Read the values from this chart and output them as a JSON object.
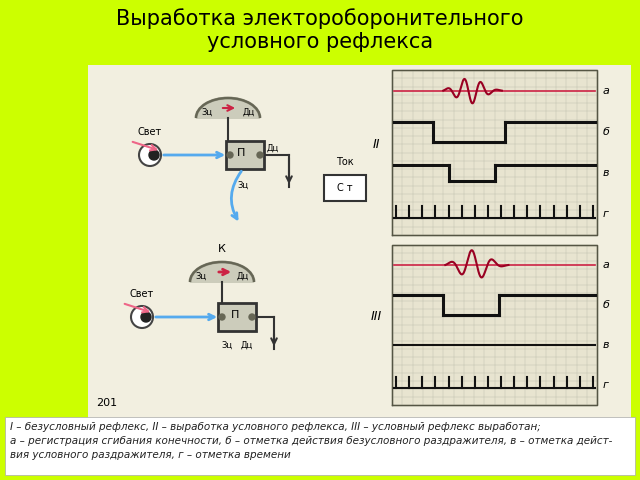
{
  "title": "Выработка электороборонительного\nусловного рефлекса",
  "title_fontsize": 15,
  "bg_color": "#ccff00",
  "main_bg": "#f2efe0",
  "footnote_line1": "I – безусловный рефлекс, II – выработка условного рефлекса, III – условный рефлекс выработан;",
  "footnote_line2": "а – регистрация сгибания конечности, б – отметка действия безусловного раздражителя, в – отметка дейст-",
  "footnote_line3": "вия условного раздражителя, г – отметка времени",
  "footnote_fontsize": 7.5,
  "roman_II": "II",
  "roman_III": "III",
  "label_a": "а",
  "label_b": "б",
  "label_v": "в",
  "label_g": "г",
  "label_svet": "Свет",
  "label_tok": "Ток",
  "label_st": "С т",
  "label_k": "К",
  "label_p": "П",
  "label_zi": "Зц",
  "label_di": "Дц",
  "label_201": "201",
  "grid_color": "#bbbbaa",
  "wave_color_red": "#cc2244",
  "wave_color_dark": "#990022",
  "step_color": "#111111",
  "tick_color": "#111111",
  "arrow_color_blue": "#55aaee",
  "arrow_color_pink": "#ee6688",
  "arrow_color_red": "#cc2244",
  "diagram_bg": "#e8e4d0",
  "box_fill": "#ccccbb",
  "brain_fill": "#ccccbb"
}
